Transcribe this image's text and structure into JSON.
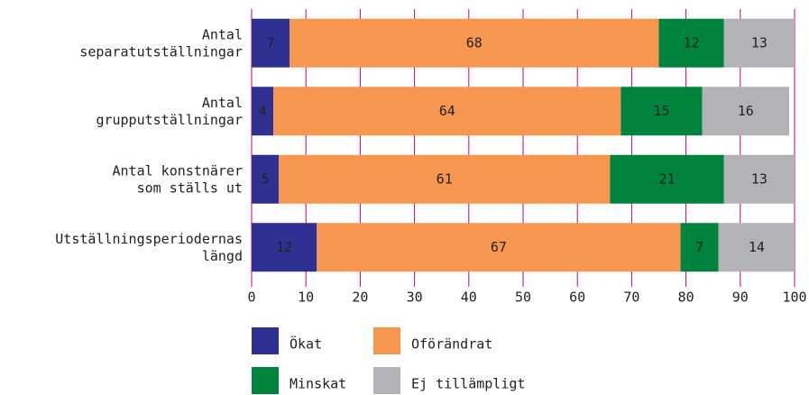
{
  "chart_data": {
    "type": "stacked-barh",
    "categories": [
      "Antal\nseparatutställningar",
      "Antal\ngrupputställningar",
      "Antal konstnärer\nsom ställs ut",
      "Utställningsperiodernas\nlängd"
    ],
    "series": [
      {
        "name": "Ökat",
        "color": "#2e3192",
        "values": [
          7,
          4,
          5,
          12
        ]
      },
      {
        "name": "Oförändrat",
        "color": "#f7964f",
        "values": [
          68,
          64,
          61,
          67
        ]
      },
      {
        "name": "Minskat",
        "color": "#00843d",
        "values": [
          12,
          15,
          21,
          7
        ]
      },
      {
        "name": "Ej tillämpligt",
        "color": "#b3b3b7",
        "values": [
          13,
          16,
          13,
          14
        ]
      }
    ],
    "xlim": [
      0,
      100
    ],
    "xticks": [
      0,
      10,
      20,
      30,
      40,
      50,
      60,
      70,
      80,
      90,
      100
    ],
    "grid": true,
    "grid_color": "#c4007c"
  }
}
